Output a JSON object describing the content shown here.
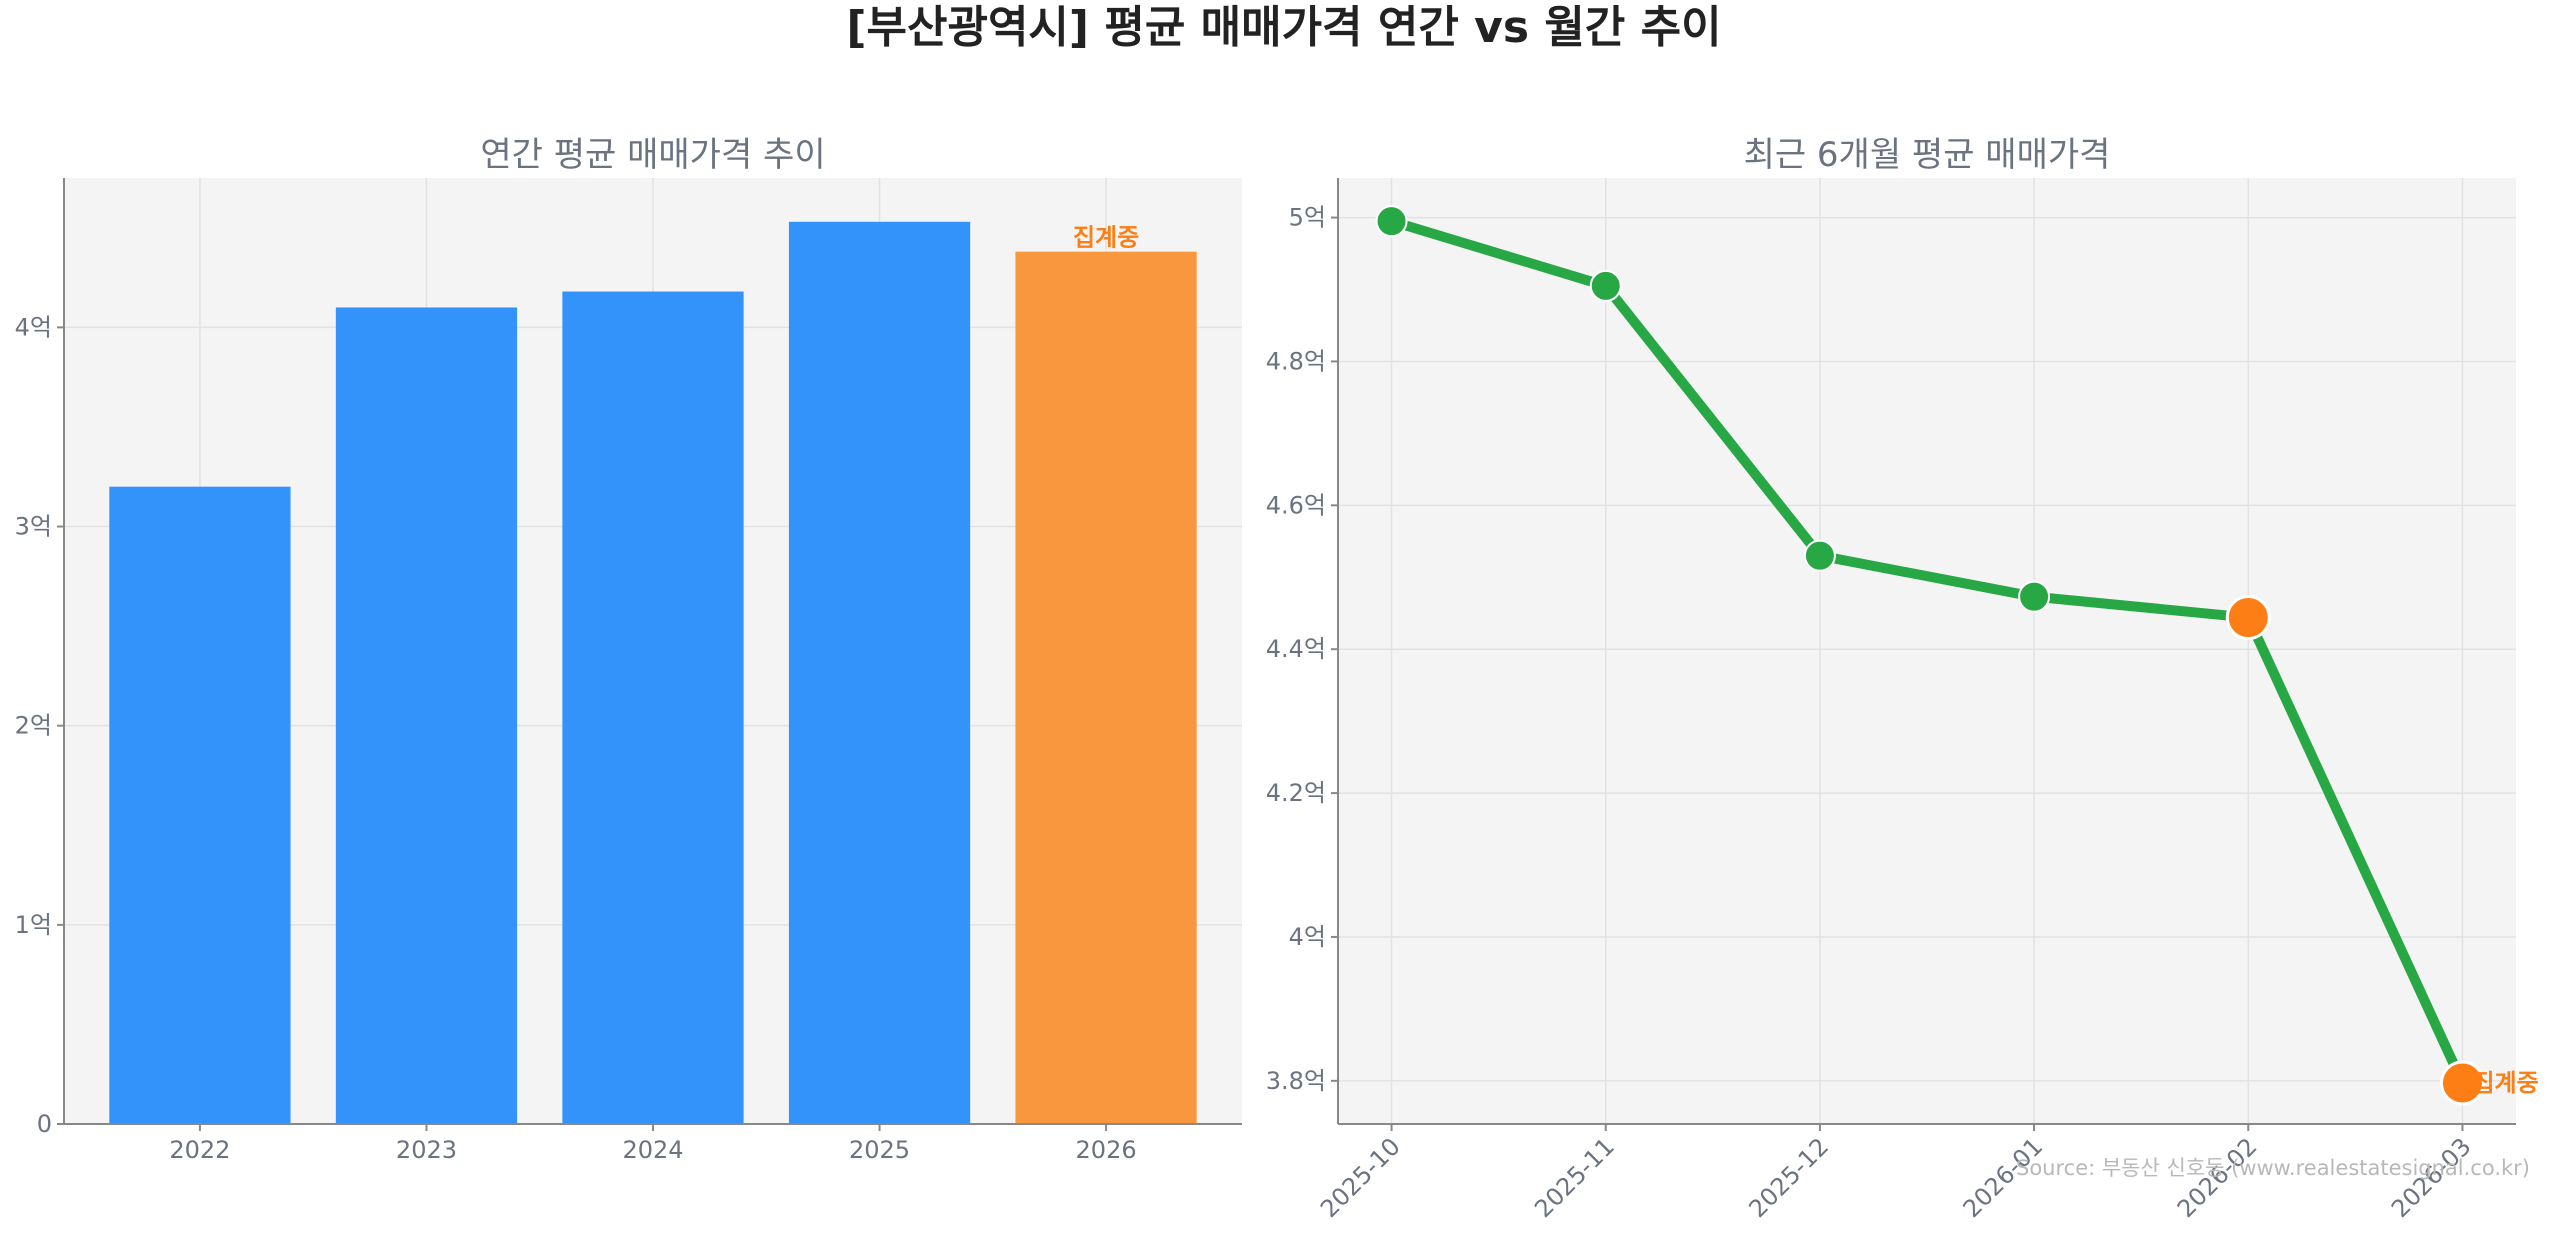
{
  "figure": {
    "title": "[부산광역시] 평균 매매가격 연간 vs 월간 추이",
    "source": "Source: 부동산 신호등 (www.realestatesignal.co.kr)"
  },
  "colors": {
    "bar": "#3393fb",
    "bar_highlight": "#f9973f",
    "line": "#28a745",
    "highlight_marker": "#fd7e14",
    "annotation": "#fd7e14",
    "panel_bg": "#f4f4f4"
  },
  "chart_data": [
    {
      "type": "bar",
      "title": "연간 평균 매매가격 추이",
      "categories": [
        "2022",
        "2023",
        "2024",
        "2025",
        "2026"
      ],
      "values": [
        3.2,
        4.1,
        4.18,
        4.53,
        4.38
      ],
      "highlight_index": 4,
      "annotation": {
        "index": 4,
        "text": "집계중"
      },
      "ylim": [
        0,
        4.75
      ],
      "yticks": [
        {
          "value": 0,
          "label": "0"
        },
        {
          "value": 1,
          "label": "1억"
        },
        {
          "value": 2,
          "label": "2억"
        },
        {
          "value": 3,
          "label": "3억"
        },
        {
          "value": 4,
          "label": "4억"
        }
      ],
      "xlabel": "",
      "ylabel": "",
      "grid": true
    },
    {
      "type": "line",
      "title": "최근 6개월 평균 매매가격",
      "categories": [
        "2025-10",
        "2025-11",
        "2025-12",
        "2026-01",
        "2026-02",
        "2026-03"
      ],
      "values": [
        4.995,
        4.905,
        4.53,
        4.473,
        4.444,
        3.797
      ],
      "highlight_indices": [
        4,
        5
      ],
      "annotation": {
        "index": 5,
        "text": "집계중"
      },
      "ylim": [
        3.74,
        5.055
      ],
      "yticks": [
        {
          "value": 3.8,
          "label": "3.8억"
        },
        {
          "value": 4.0,
          "label": "4억"
        },
        {
          "value": 4.2,
          "label": "4.2억"
        },
        {
          "value": 4.4,
          "label": "4.4억"
        },
        {
          "value": 4.6,
          "label": "4.6억"
        },
        {
          "value": 4.8,
          "label": "4.8억"
        },
        {
          "value": 5.0,
          "label": "5억"
        }
      ],
      "xlabel": "",
      "ylabel": "",
      "grid": true
    }
  ]
}
